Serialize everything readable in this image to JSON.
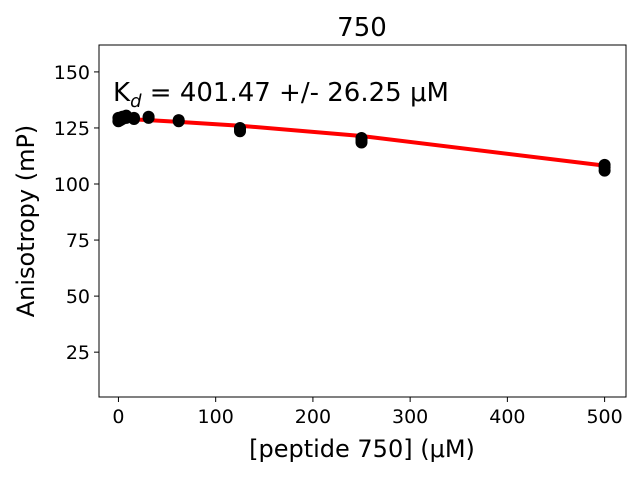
{
  "chart_data": {
    "type": "scatter",
    "title": "750",
    "xlabel": "[peptide 750] (μM)",
    "ylabel": "Anisotropy (mP)",
    "annotation": {
      "prefix": "K",
      "subscript": "d",
      "text": " = 401.47 +/- 26.25 μM"
    },
    "xlim": [
      -20,
      522
    ],
    "ylim": [
      5,
      162
    ],
    "xticks": [
      0,
      100,
      200,
      300,
      400,
      500
    ],
    "yticks": [
      25,
      50,
      75,
      100,
      125,
      150
    ],
    "grid": false,
    "points": {
      "color": "#000000",
      "data": [
        [
          0,
          128
        ],
        [
          0,
          129.5
        ],
        [
          1,
          129
        ],
        [
          2,
          128.5
        ],
        [
          4,
          129
        ],
        [
          4,
          130
        ],
        [
          8,
          129.5
        ],
        [
          8,
          130.5
        ],
        [
          16,
          129
        ],
        [
          16,
          129.5
        ],
        [
          31,
          130
        ],
        [
          31,
          129.5
        ],
        [
          62,
          128
        ],
        [
          62,
          128.5
        ],
        [
          125,
          123.5
        ],
        [
          125,
          124.5
        ],
        [
          125,
          125
        ],
        [
          250,
          118.5
        ],
        [
          250,
          119.5
        ],
        [
          250,
          120.5
        ],
        [
          500,
          106
        ],
        [
          500,
          107.5
        ],
        [
          500,
          108.5
        ]
      ]
    },
    "fit": {
      "color": "#ff0000",
      "x": [
        0,
        31,
        62,
        125,
        250,
        500
      ],
      "y": [
        129.2,
        128.5,
        127.7,
        126.0,
        121.4,
        108.2
      ]
    }
  }
}
